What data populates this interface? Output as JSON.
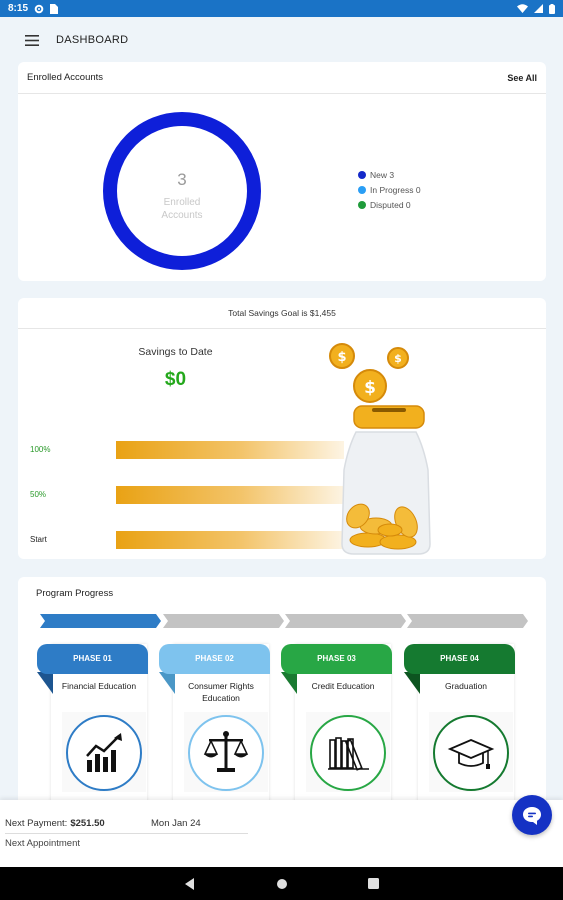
{
  "status_bar": {
    "time": "8:15",
    "left_icons": [
      "settings-icon",
      "sim-card-icon"
    ],
    "right_icons": [
      "wifi-icon",
      "cellular-icon",
      "battery-icon"
    ]
  },
  "app_bar": {
    "title": "DASHBOARD",
    "menu_icon": "hamburger-menu-icon"
  },
  "enrolled_accounts": {
    "title": "Enrolled Accounts",
    "see_all": "See All",
    "count": "3",
    "count_label_line1": "Enrolled",
    "count_label_line2": "Accounts",
    "ring_color": "#0e1fd9",
    "legend": [
      {
        "label": "New 3",
        "color": "#1429c9"
      },
      {
        "label": "In Progress 0",
        "color": "#2a9ef5"
      },
      {
        "label": "Disputed 0",
        "color": "#1f9b3b"
      }
    ]
  },
  "savings": {
    "goal_text": "Total Savings Goal is $1,455",
    "to_date_label": "Savings to Date",
    "to_date_value": "$0",
    "levels": [
      {
        "label": "100%",
        "color": "#2a9a2a"
      },
      {
        "label": "50%",
        "color": "#2a9a2a"
      },
      {
        "label": "Start",
        "color": "#222222"
      }
    ],
    "progress_fraction": 0,
    "illustration": "coin-jar-illustration"
  },
  "program_progress": {
    "title": "Program Progress",
    "phases": [
      {
        "tab": "PHASE 01",
        "name": "Financial Education",
        "tab_color": "#2e7cc6",
        "fold_color": "#1d5590",
        "ring_color": "#2e7cc6",
        "icon": "growth-chart-icon",
        "arrow_color": "#2e7cc6"
      },
      {
        "tab": "PHASE 02",
        "name": "Consumer Rights Education",
        "tab_color": "#7ec3ee",
        "fold_color": "#4a97c6",
        "ring_color": "#7ec3ee",
        "icon": "scales-of-justice-icon",
        "arrow_color": "#c3c3c3"
      },
      {
        "tab": "PHASE 03",
        "name": "Credit Education",
        "tab_color": "#28a745",
        "fold_color": "#1a7a31",
        "ring_color": "#28a745",
        "icon": "books-icon",
        "arrow_color": "#c3c3c3"
      },
      {
        "tab": "PHASE 04",
        "name": "Graduation",
        "tab_color": "#157a30",
        "fold_color": "#0d5520",
        "ring_color": "#157a30",
        "icon": "graduation-cap-icon",
        "arrow_color": "#c3c3c3"
      }
    ]
  },
  "bottom_panel": {
    "next_payment_label": "Next Payment:",
    "next_payment_amount": "$251.50",
    "next_payment_date": "Mon Jan 24",
    "next_appointment_label": "Next Appointment"
  },
  "chat_button": {
    "icon": "chat-bubble-icon",
    "color": "#1532c4"
  },
  "nav_bar": {
    "icons": [
      "back-icon",
      "home-icon",
      "recents-icon"
    ]
  }
}
